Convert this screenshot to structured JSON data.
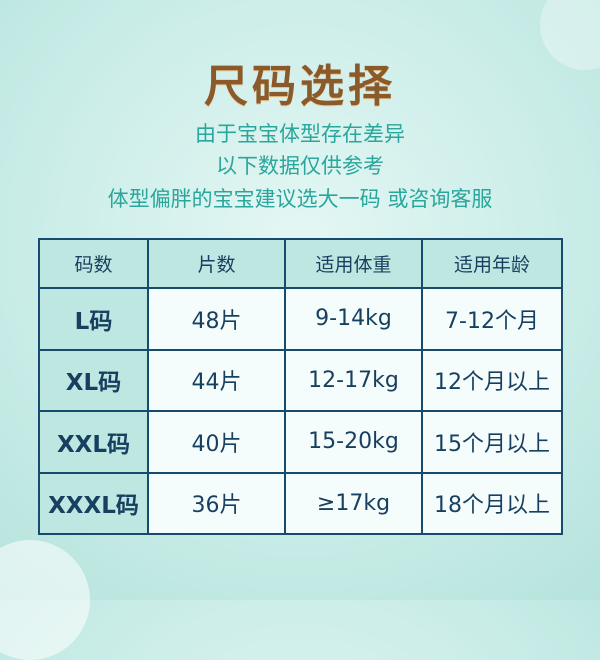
{
  "title": "尺码选择",
  "subtitle_lines": [
    "由于宝宝体型存在差异",
    "以下数据仅供参考",
    "体型偏胖的宝宝建议选大一码  或咨询客服"
  ],
  "table": {
    "headers": [
      "码数",
      "片数",
      "适用体重",
      "适用年龄"
    ],
    "rows": [
      [
        "L码",
        "48片",
        "9-14kg",
        "7-12个月"
      ],
      [
        "XL码",
        "44片",
        "12-17kg",
        "12个月以上"
      ],
      [
        "XXL码",
        "40片",
        "15-20kg",
        "15个月以上"
      ],
      [
        "XXXL码",
        "36片",
        "≥17kg",
        "18个月以上"
      ]
    ]
  },
  "colors": {
    "title": "#8a5a2b",
    "subtitle": "#2aa69c",
    "table_border": "#164b6e",
    "header_bg": "#bfe7e2"
  }
}
